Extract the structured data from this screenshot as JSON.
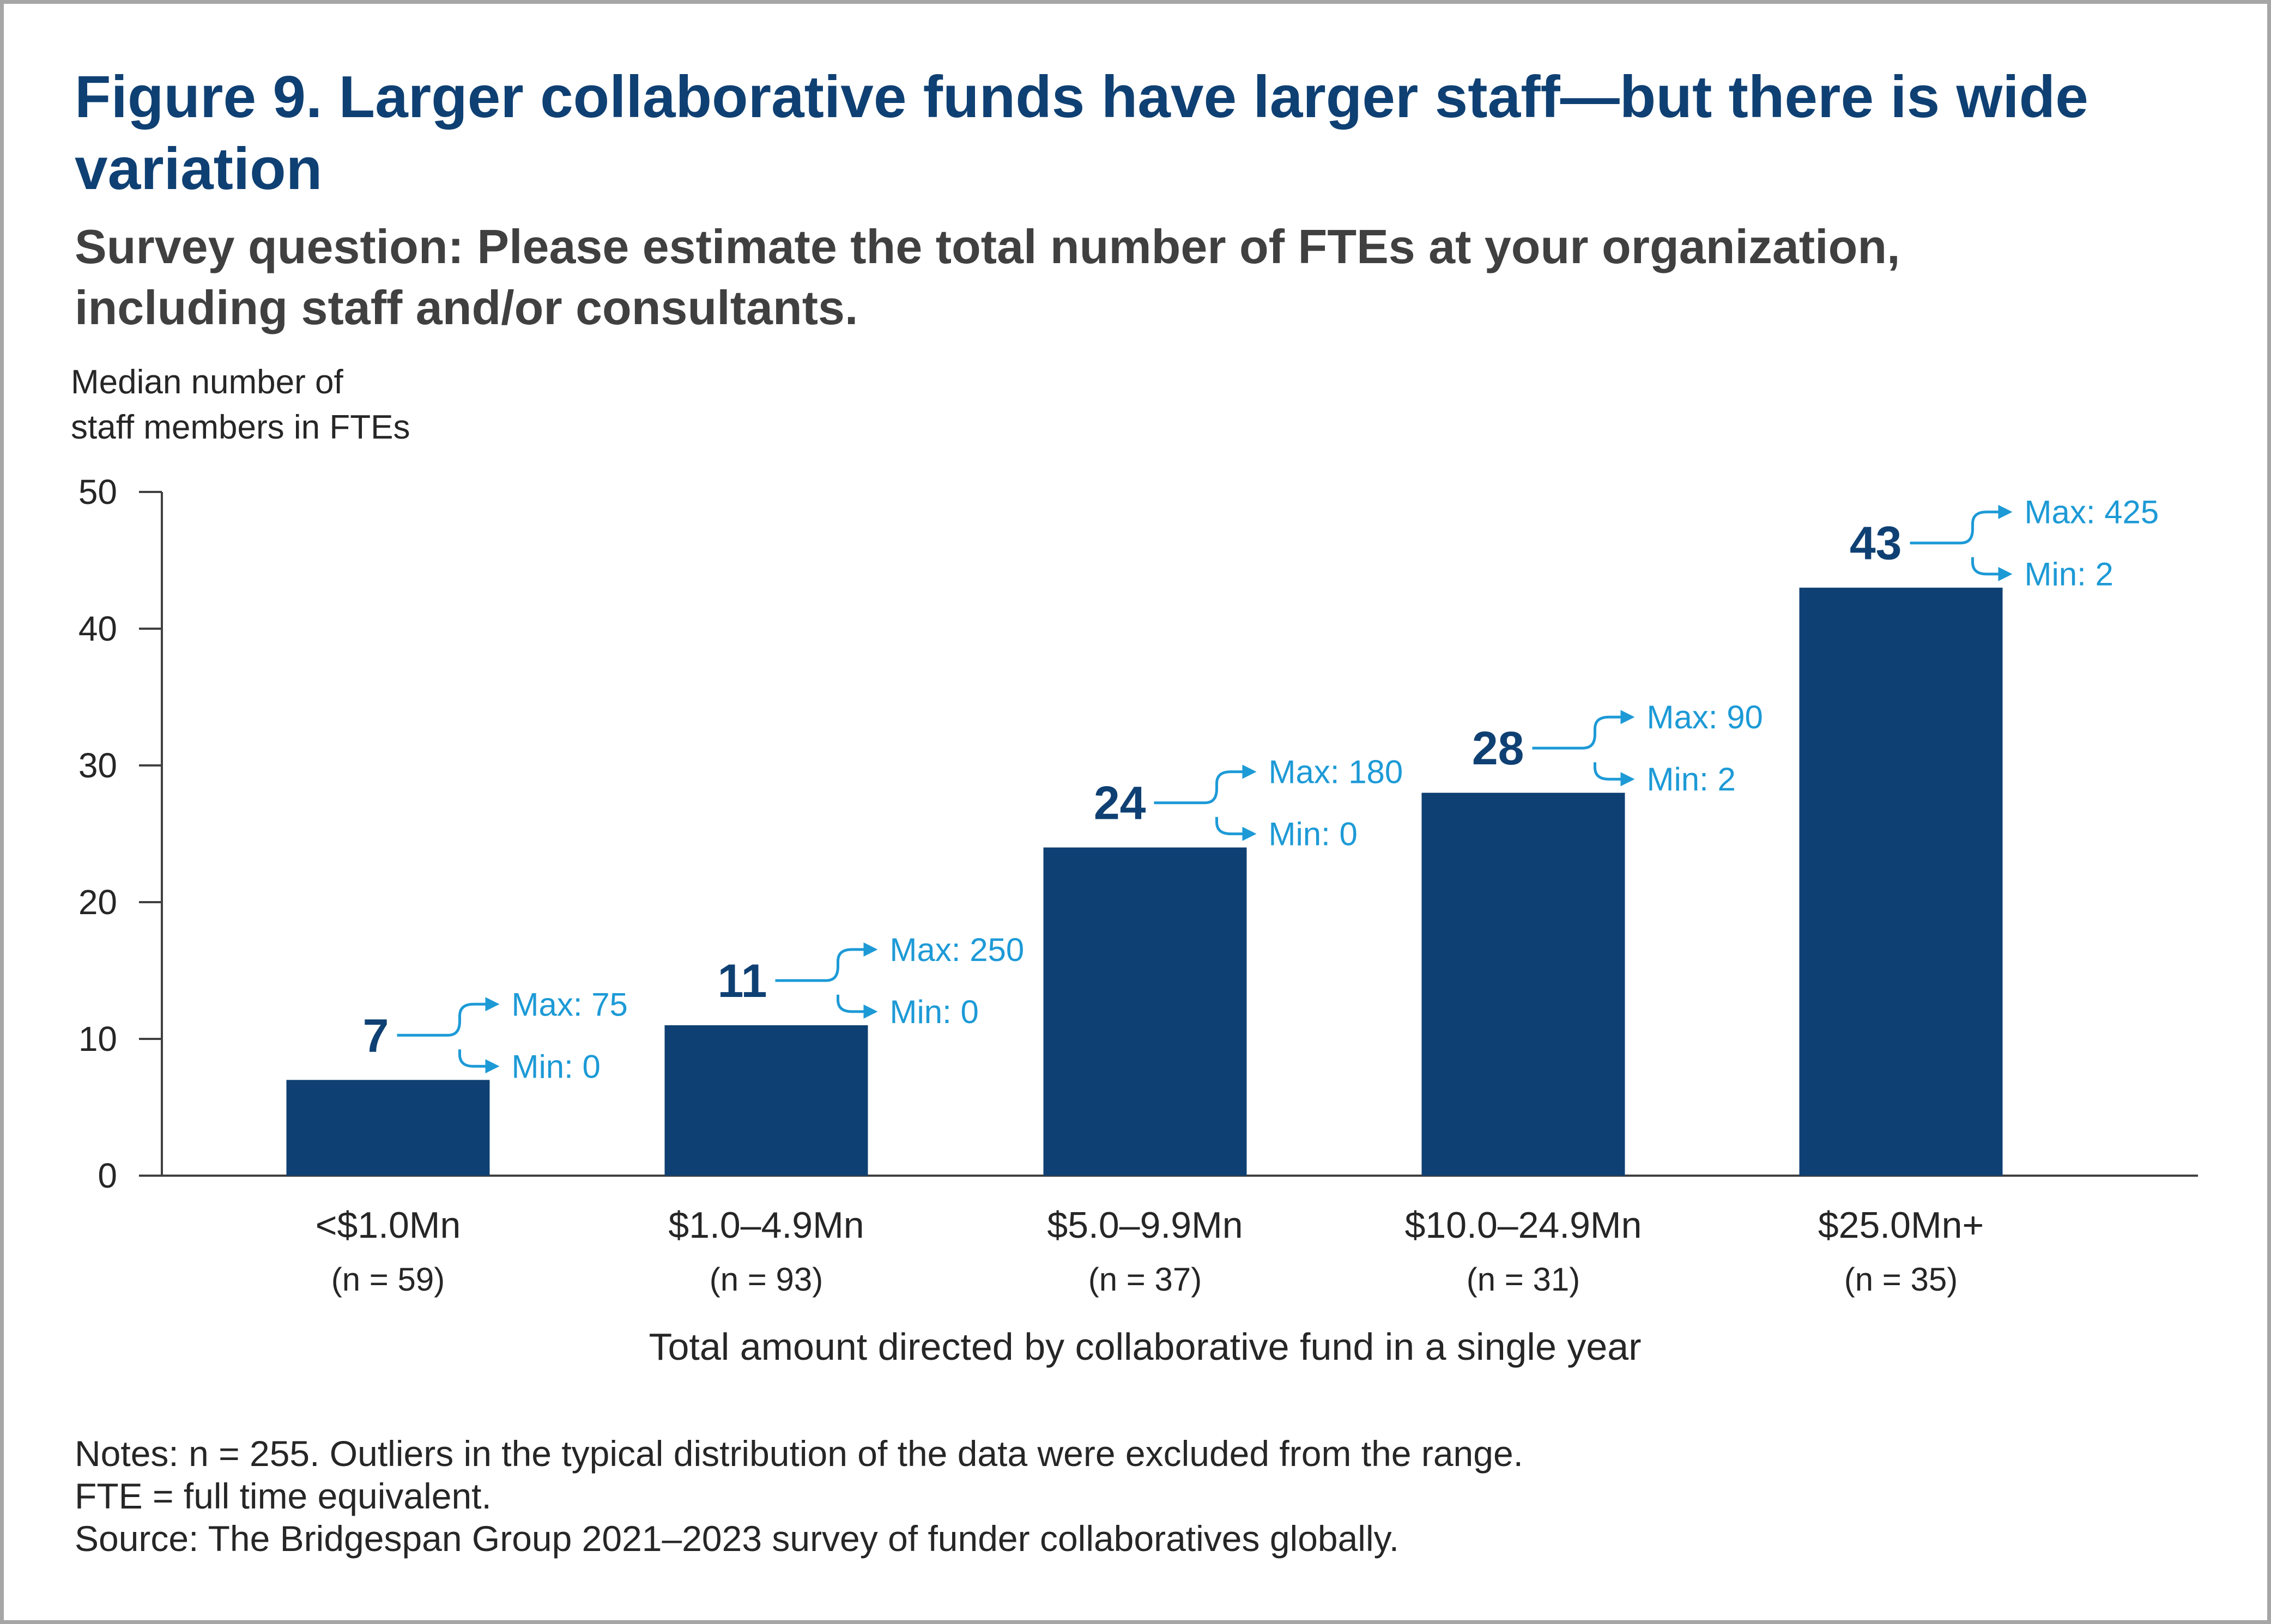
{
  "title": "Figure 9. Larger collaborative funds have larger staff—but there is wide variation",
  "subtitle": "Survey question: Please estimate the total number of FTEs at your organization, including staff and/or consultants.",
  "notes": [
    "Notes: n = 255. Outliers in the typical distribution of the data were excluded from the range.",
    "FTE = full time equivalent.",
    "Source: The Bridgespan Group 2021–2023 survey of funder collaboratives globally."
  ],
  "colors": {
    "bar": "#0f4073",
    "accent": "#1d9ad6",
    "title": "#0f4073",
    "text": "#262626"
  },
  "chart_data": {
    "type": "bar",
    "ylabel_lines": [
      "Median number of",
      "staff members in FTEs"
    ],
    "xlabel": "Total amount directed by collaborative fund in a single year",
    "ylim": [
      0,
      50
    ],
    "yticks": [
      0,
      10,
      20,
      30,
      40,
      50
    ],
    "grid": false,
    "categories": [
      "<$1.0Mn",
      "$1.0–4.9Mn",
      "$5.0–9.9Mn",
      "$10.0–24.9Mn",
      "$25.0Mn+"
    ],
    "category_n": [
      "(n = 59)",
      "(n = 93)",
      "(n = 37)",
      "(n = 31)",
      "(n = 35)"
    ],
    "values": [
      7,
      11,
      24,
      28,
      43
    ],
    "value_labels": [
      "7",
      "11",
      "24",
      "28",
      "43"
    ],
    "max_labels": [
      "Max: 75",
      "Max: 250",
      "Max: 180",
      "Max: 90",
      "Max: 425"
    ],
    "min_labels": [
      "Min: 0",
      "Min: 0",
      "Min: 0",
      "Min: 2",
      "Min: 2"
    ]
  }
}
